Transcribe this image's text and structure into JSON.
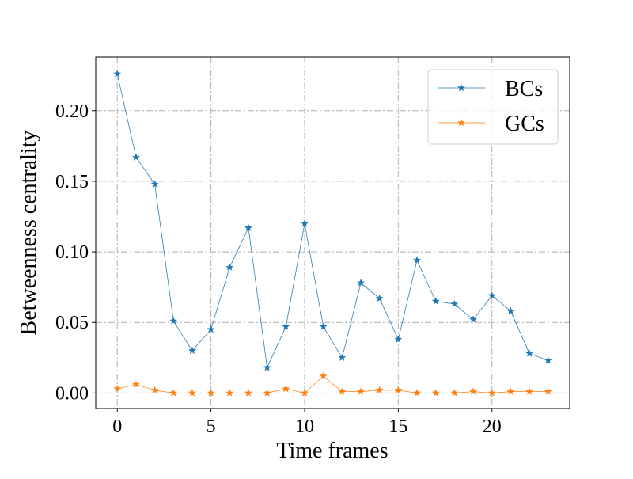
{
  "chart_data": {
    "type": "line",
    "title": "",
    "xlabel": "Time frames",
    "ylabel": "Betweenness centrality",
    "xlim": [
      -1.15,
      24.15
    ],
    "ylim": [
      -0.011,
      0.238
    ],
    "xticks": [
      0,
      5,
      10,
      15,
      20
    ],
    "xtick_labels": [
      "0",
      "5",
      "10",
      "15",
      "20"
    ],
    "yticks": [
      0.0,
      0.05,
      0.1,
      0.15,
      0.2
    ],
    "ytick_labels": [
      "0.00",
      "0.05",
      "0.10",
      "0.15",
      "0.20"
    ],
    "grid": true,
    "legend_position": "top-right",
    "x": [
      0,
      1,
      2,
      3,
      4,
      5,
      6,
      7,
      8,
      9,
      10,
      11,
      12,
      13,
      14,
      15,
      16,
      17,
      18,
      19,
      20,
      21,
      22,
      23
    ],
    "series": [
      {
        "name": "BCs",
        "color": "#1f77b4",
        "marker": "star",
        "values": [
          0.226,
          0.167,
          0.148,
          0.051,
          0.03,
          0.045,
          0.089,
          0.117,
          0.018,
          0.047,
          0.12,
          0.047,
          0.025,
          0.078,
          0.067,
          0.038,
          0.094,
          0.065,
          0.063,
          0.052,
          0.069,
          0.058,
          0.028,
          0.023
        ]
      },
      {
        "name": "GCs",
        "color": "#ff7f0e",
        "marker": "star",
        "values": [
          0.003,
          0.006,
          0.002,
          0.0,
          0.0,
          0.0,
          0.0,
          0.0,
          0.0,
          0.003,
          0.0,
          0.012,
          0.001,
          0.001,
          0.002,
          0.002,
          0.0,
          0.0,
          0.0,
          0.001,
          0.0,
          0.001,
          0.001,
          0.001
        ]
      }
    ]
  }
}
